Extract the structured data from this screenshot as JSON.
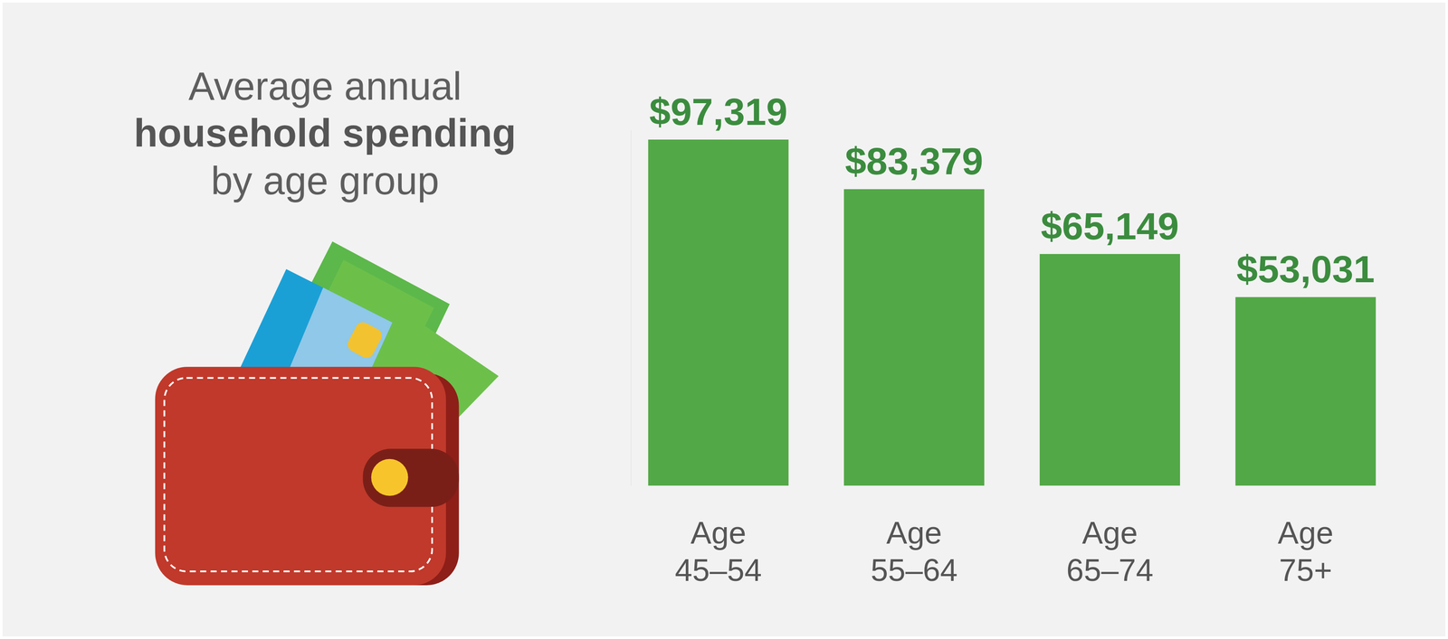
{
  "chart_data": {
    "type": "bar",
    "title": [
      "Average annual",
      "household spending",
      "by age group"
    ],
    "categories": [
      "Age 45–54",
      "Age 55–64",
      "Age 65–74",
      "Age 75+"
    ],
    "values": [
      97319,
      83379,
      65149,
      53031
    ],
    "value_labels": [
      "$97,319",
      "$83,379",
      "$65,149",
      "$53,031"
    ],
    "color": "#52a846",
    "ylim": [
      0,
      100000
    ],
    "yticks": [],
    "data_labels": true,
    "tick_labels": "x"
  }
}
